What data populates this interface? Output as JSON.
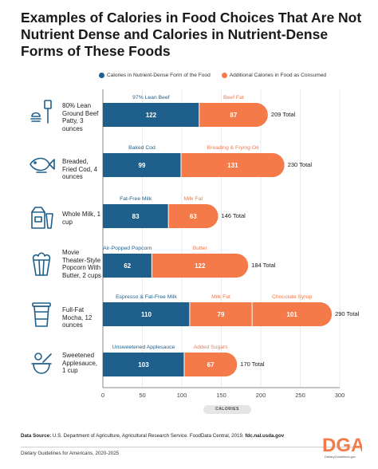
{
  "title": "Examples of Calories in Food Choices That Are Not Nutrient Dense and Calories in Nutrient-Dense Forms of These Foods",
  "legend": {
    "nutrient_dense": "Calories in Nutrient-Dense Form of the Food",
    "additional": "Additional Calories in Food as Consumed"
  },
  "colors": {
    "nutrient_dense": "#1f5f8b",
    "additional": "#f47a4a",
    "axis": "#999999"
  },
  "foods": [
    {
      "label": "80% Lean Ground Beef Patty, 3 ounces",
      "icon": "spatula-burger-icon"
    },
    {
      "label": "Breaded, Fried Cod, 4 ounces",
      "icon": "fish-icon"
    },
    {
      "label": "Whole Milk, 1 cup",
      "icon": "milk-icon"
    },
    {
      "label": "Movie Theater-Style Popcorn With Butter, 2 cups",
      "icon": "popcorn-icon"
    },
    {
      "label": "Full-Fat Mocha, 12 ounces",
      "icon": "coffee-cup-icon"
    },
    {
      "label": "Sweetened Applesauce, 1 cup",
      "icon": "applesauce-icon"
    }
  ],
  "chart_data": {
    "type": "bar",
    "orientation": "horizontal",
    "stacked": true,
    "categories": [
      "80% Lean Ground Beef Patty, 3 ounces",
      "Breaded, Fried Cod, 4 ounces",
      "Whole Milk, 1 cup",
      "Movie Theater-Style Popcorn With Butter, 2 cups",
      "Full-Fat Mocha, 12 ounces",
      "Sweetened Applesauce, 1 cup"
    ],
    "segments": [
      [
        {
          "name": "97% Lean Beef",
          "value": 122,
          "group": "nutrient_dense"
        },
        {
          "name": "Beef Fat",
          "value": 87,
          "group": "additional"
        }
      ],
      [
        {
          "name": "Baked Cod",
          "value": 99,
          "group": "nutrient_dense"
        },
        {
          "name": "Breading & Frying Oil",
          "value": 131,
          "group": "additional"
        }
      ],
      [
        {
          "name": "Fat-Free Milk",
          "value": 83,
          "group": "nutrient_dense"
        },
        {
          "name": "Milk Fat",
          "value": 63,
          "group": "additional"
        }
      ],
      [
        {
          "name": "Air-Popped Popcorn",
          "value": 62,
          "group": "nutrient_dense"
        },
        {
          "name": "Butter",
          "value": 122,
          "group": "additional"
        }
      ],
      [
        {
          "name": "Espresso & Fat-Free Milk",
          "value": 110,
          "group": "nutrient_dense"
        },
        {
          "name": "Milk Fat",
          "value": 79,
          "group": "additional"
        },
        {
          "name": "Chocolate Syrup",
          "value": 101,
          "group": "additional"
        }
      ],
      [
        {
          "name": "Unsweetened Applesauce",
          "value": 103,
          "group": "nutrient_dense"
        },
        {
          "name": "Added Sugars",
          "value": 67,
          "group": "additional"
        }
      ]
    ],
    "totals": [
      "209 Total",
      "230 Total",
      "146 Total",
      "184 Total",
      "290 Total",
      "170 Total"
    ],
    "xlabel": "CALORIES",
    "xlim": [
      0,
      300
    ],
    "xticks": [
      "0",
      "50",
      "100",
      "150",
      "200",
      "250",
      "300"
    ],
    "grid": true,
    "legend_position": "top"
  },
  "source": {
    "label": "Data Source:",
    "text": "U.S. Department of Agriculture, Agricultural Research Service. FoodData Central, 2019.",
    "link": "fdc.nal.usda.gov"
  },
  "footer": "Dietary Guidelines for Americans, 2020-2025",
  "logo": {
    "text": "DGA",
    "url_text": "DietaryGuidelines.gov"
  }
}
